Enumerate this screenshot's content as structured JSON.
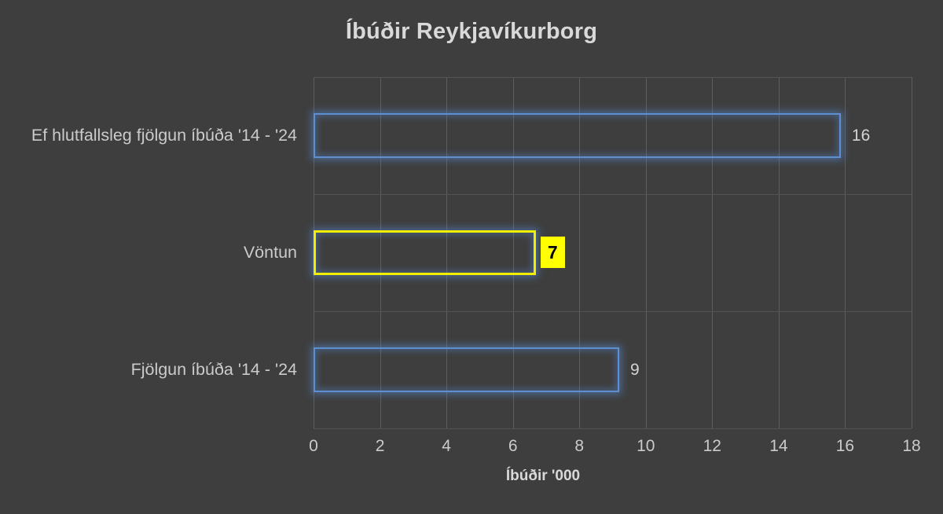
{
  "chart_data": {
    "type": "bar",
    "orientation": "horizontal",
    "title": "Íbúðir Reykjavíkurborg",
    "categories": [
      "Ef hlutfallsleg fjölgun íbúða '14 - '24",
      "Vöntun",
      "Fjölgun íbúða '14 - '24"
    ],
    "values": [
      16,
      7,
      9
    ],
    "value_labels": [
      "16",
      "7",
      "9"
    ],
    "plotted_values": [
      15.87,
      6.69,
      9.2
    ],
    "highlighted_index": 1,
    "highlighted_category": "Vöntun",
    "xlabel": "Íbúðir '000",
    "ylabel": "",
    "xlim": [
      0,
      18
    ],
    "x_ticks": [
      0,
      2,
      4,
      6,
      8,
      10,
      12,
      14,
      16,
      18
    ],
    "grid": true,
    "legend": false
  },
  "colors": {
    "background": "#3E3E3E",
    "title_text": "#D9D9D9",
    "category_text": "#CCCACA",
    "value_text": "#D5D3D3",
    "tick_text": "#CCCACA",
    "gridline_vertical": "#5E5E5E",
    "gridline_horizontal": "#535353",
    "bar_border_blue": "#5D8FD1",
    "bar_border_yellow": "#F2EE00",
    "bar_glow": "rgba(88,136,205,0.55)",
    "highlight_label_bg": "#FFFF00",
    "highlight_label_text": "#000000"
  }
}
